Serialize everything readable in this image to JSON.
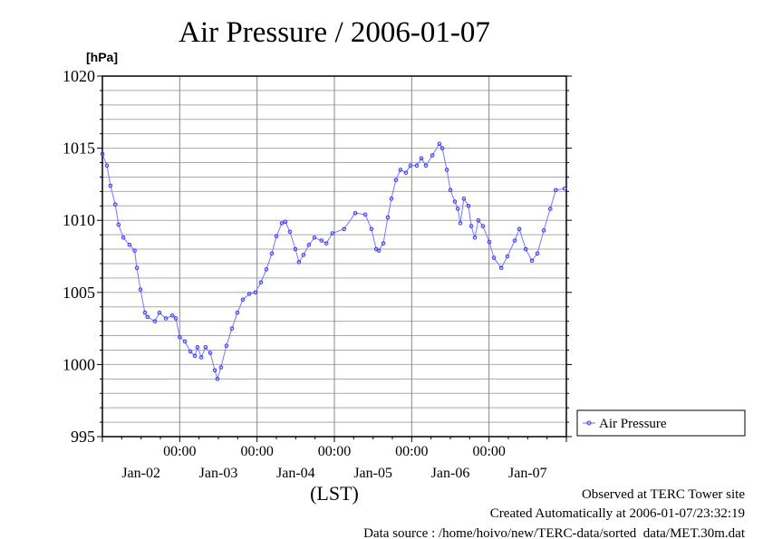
{
  "chart_data": {
    "type": "line",
    "title": "Air Pressure / 2006-01-07",
    "ylabel": "[hPa]",
    "xlabel": "(LST)",
    "ylim": [
      995,
      1020
    ],
    "yticks": [
      "995",
      "1000",
      "1005",
      "1010",
      "1015",
      "1020"
    ],
    "ytick_values": [
      995,
      1000,
      1005,
      1010,
      1015,
      1020
    ],
    "xlim_hours": [
      0,
      144
    ],
    "xtick_time_labels": [
      "00:00",
      "00:00",
      "00:00",
      "00:00",
      "00:00"
    ],
    "xtick_hours": [
      24,
      48,
      72,
      96,
      120
    ],
    "day_labels": [
      "Jan-02",
      "Jan-03",
      "Jan-04",
      "Jan-05",
      "Jan-06",
      "Jan-07"
    ],
    "grid": true,
    "legend_position": "right",
    "series": [
      {
        "name": "Air Pressure",
        "color": "#3333ff",
        "x_hours": [
          0,
          1.4,
          2.5,
          4,
          5,
          6.5,
          8.4,
          10,
          10.7,
          11.8,
          13.2,
          14,
          16.3,
          17.7,
          19.7,
          21.7,
          22.8,
          24,
          25.6,
          27.3,
          28.7,
          29.5,
          30.7,
          32,
          33.5,
          34.9,
          35.7,
          36.8,
          38.5,
          40.2,
          41.9,
          43.6,
          45.6,
          47.5,
          49.2,
          50.9,
          52.6,
          54,
          55.7,
          56.8,
          58.2,
          59.9,
          61,
          62.4,
          64.1,
          65.8,
          68,
          69.5,
          71.4,
          75,
          78.5,
          81.6,
          83.5,
          85,
          85.8,
          87.2,
          88.6,
          89.7,
          91.1,
          92.5,
          94.2,
          95.6,
          97.6,
          99,
          100.4,
          102.4,
          104.6,
          105.5,
          106.9,
          108,
          109.4,
          110.3,
          111.1,
          112.2,
          113.6,
          114.5,
          115.6,
          116.7,
          118.1,
          120.1,
          121.5,
          123.8,
          125.7,
          128,
          129.4,
          131.4,
          133.3,
          135,
          137,
          139,
          140.7,
          143.5
        ],
        "values": [
          1014.6,
          1013.8,
          1012.4,
          1011.1,
          1009.7,
          1008.8,
          1008.3,
          1007.9,
          1006.7,
          1005.2,
          1003.6,
          1003.3,
          1003.0,
          1003.6,
          1003.2,
          1003.4,
          1003.2,
          1001.9,
          1001.6,
          1000.9,
          1000.6,
          1001.2,
          1000.5,
          1001.2,
          1000.8,
          999.6,
          999.0,
          999.8,
          1001.3,
          1002.5,
          1003.6,
          1004.5,
          1004.9,
          1005.0,
          1005.7,
          1006.6,
          1007.7,
          1008.9,
          1009.8,
          1009.9,
          1009.2,
          1008.0,
          1007.1,
          1007.6,
          1008.3,
          1008.8,
          1008.6,
          1008.4,
          1009.1,
          1009.4,
          1010.5,
          1010.4,
          1009.4,
          1008.0,
          1007.9,
          1008.4,
          1010.2,
          1011.5,
          1012.8,
          1013.5,
          1013.3,
          1013.8,
          1013.8,
          1014.3,
          1013.8,
          1014.5,
          1015.3,
          1015.0,
          1013.5,
          1012.1,
          1011.3,
          1010.8,
          1009.8,
          1011.5,
          1011.0,
          1009.6,
          1008.8,
          1010.0,
          1009.6,
          1008.5,
          1007.4,
          1006.7,
          1007.5,
          1008.6,
          1009.4,
          1008.0,
          1007.2,
          1007.7,
          1009.3,
          1010.8,
          1012.1,
          1012.2
        ]
      }
    ]
  },
  "footer": {
    "observed": "Observed at TERC Tower site",
    "created": "Created Automatically at 2006-01-07/23:32:19",
    "source": "Data source : /home/hoivo/new/TERC-data/sorted  data/MET.30m.dat"
  }
}
